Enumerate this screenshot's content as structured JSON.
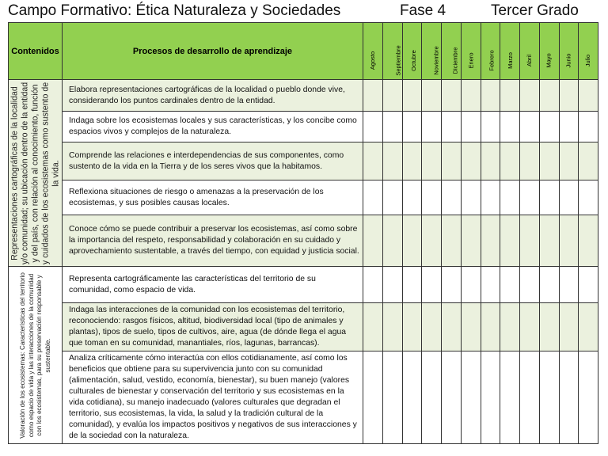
{
  "header": {
    "campo": "Campo Formativo: Ética Naturaleza y Sociedades",
    "fase": "Fase 4",
    "grado": "Tercer Grado"
  },
  "columns": {
    "contenidos": "Contenidos",
    "procesos": "Procesos de desarrollo de aprendizaje",
    "months": [
      "Agosto",
      "Septiembre",
      "Octubre",
      "Noviembre",
      "Diciembre",
      "Enero",
      "Febrero",
      "Marzo",
      "Abril",
      "Mayo",
      "Junio",
      "Julio"
    ]
  },
  "header_color": "#92d050",
  "sections": [
    {
      "contenido": "Representaciones cartográficas de la localidad y/o comunidad; su ubicación dentro de la entidad y del país, con relación al conocimiento, función y cuidados de los ecosistemas como sustento de la vida.",
      "procesos": [
        "Elabora representaciones cartográficas de la localidad o pueblo donde vive, considerando los puntos cardinales dentro de la entidad.",
        "Indaga sobre los ecosistemas locales y sus características, y los concibe como espacios vivos y complejos de la naturaleza.",
        "Comprende las relaciones e interdependencias de sus componentes, como sustento de la vida en la Tierra y de los seres vivos que la habitamos.",
        "Reflexiona situaciones de riesgo o amenazas a la preservación de los ecosistemas, y sus posibles causas locales.",
        "Conoce cómo se puede contribuir a preservar los ecosistemas, así como sobre la importancia del respeto, responsabilidad y colaboración en su cuidado y aprovechamiento sustentable, a través del tiempo, con equidad y justicia social."
      ]
    },
    {
      "contenido": "Valoración de los ecosistemas: Características del territorio como espacio de vida y las interacciones de la comunidad con los ecosistemas, para su preservación responsable y sustentable.",
      "procesos": [
        "Representa cartográficamente las características del territorio de su comunidad, como espacio de vida.",
        "Indaga las interacciones de la comunidad con los ecosistemas del territorio, reconociendo: rasgos físicos, altitud, biodiversidad local (tipo de animales y plantas), tipos de suelo, tipos de cultivos, aire, agua (de dónde llega el agua que toman en su comunidad, manantiales, ríos, lagunas, barrancas).",
        "Analiza críticamente cómo interactúa con ellos cotidianamente, así como los beneficios que obtiene para su supervivencia junto con su comunidad (alimentación, salud, vestido, economía, bienestar), su buen manejo (valores culturales de bienestar y conservación del territorio y sus ecosistemas en la vida cotidiana), su manejo inadecuado (valores culturales que degradan el territorio, sus ecosistemas, la vida, la salud y la tradición cultural de la comunidad), y evalúa los impactos positivos y negativos de sus interacciones y de la sociedad con la naturaleza."
      ]
    }
  ]
}
